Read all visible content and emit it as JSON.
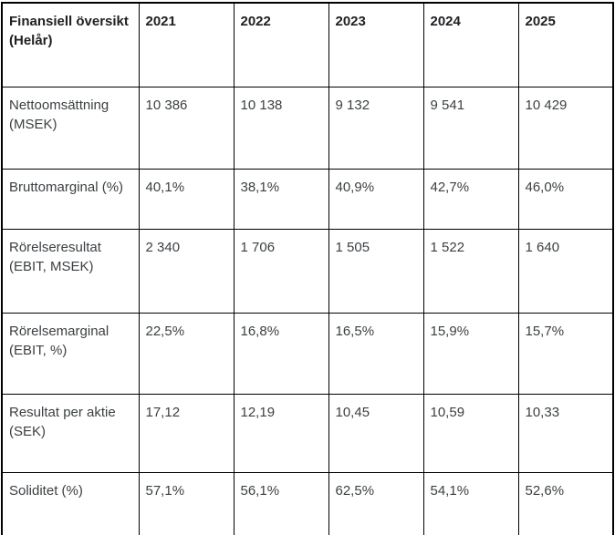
{
  "colors": {
    "border": "#000000",
    "header_text": "#202124",
    "body_text": "#3c4043",
    "background": "#ffffff"
  },
  "table": {
    "header": {
      "label": "Finansiell översikt (Helår)",
      "years": [
        "2021",
        "2022",
        "2023",
        "2024",
        "2025"
      ]
    },
    "rows": [
      {
        "label": "Nettoomsättning (MSEK)",
        "values": [
          "10 386",
          "10 138",
          "9 132",
          "9 541",
          "10 429"
        ]
      },
      {
        "label": "Bruttomarginal (%)",
        "values": [
          "40,1%",
          "38,1%",
          "40,9%",
          "42,7%",
          "46,0%"
        ]
      },
      {
        "label": "Rörelseresultat (EBIT, MSEK)",
        "values": [
          "2 340",
          "1 706",
          "1 505",
          "1 522",
          "1 640"
        ]
      },
      {
        "label": "Rörelsemarginal (EBIT, %)",
        "values": [
          "22,5%",
          "16,8%",
          "16,5%",
          "15,9%",
          "15,7%"
        ]
      },
      {
        "label": "Resultat per aktie (SEK)",
        "values": [
          "17,12",
          "12,19",
          "10,45",
          "10,59",
          "10,33"
        ]
      },
      {
        "label": "Soliditet (%)",
        "values": [
          "57,1%",
          "56,1%",
          "62,5%",
          "54,1%",
          "52,6%"
        ]
      }
    ]
  },
  "chart_data": {
    "type": "table",
    "title": "Finansiell översikt (Helår)",
    "columns": [
      "Finansiell översikt (Helår)",
      "2021",
      "2022",
      "2023",
      "2024",
      "2025"
    ],
    "rows": [
      [
        "Nettoomsättning (MSEK)",
        "10 386",
        "10 138",
        "9 132",
        "9 541",
        "10 429"
      ],
      [
        "Bruttomarginal (%)",
        "40,1%",
        "38,1%",
        "40,9%",
        "42,7%",
        "46,0%"
      ],
      [
        "Rörelseresultat (EBIT, MSEK)",
        "2 340",
        "1 706",
        "1 505",
        "1 522",
        "1 640"
      ],
      [
        "Rörelsemarginal (EBIT, %)",
        "22,5%",
        "16,8%",
        "16,5%",
        "15,9%",
        "15,7%"
      ],
      [
        "Resultat per aktie (SEK)",
        "17,12",
        "12,19",
        "10,45",
        "10,59",
        "10,33"
      ],
      [
        "Soliditet (%)",
        "57,1%",
        "56,1%",
        "62,5%",
        "54,1%",
        "52,6%"
      ]
    ]
  }
}
